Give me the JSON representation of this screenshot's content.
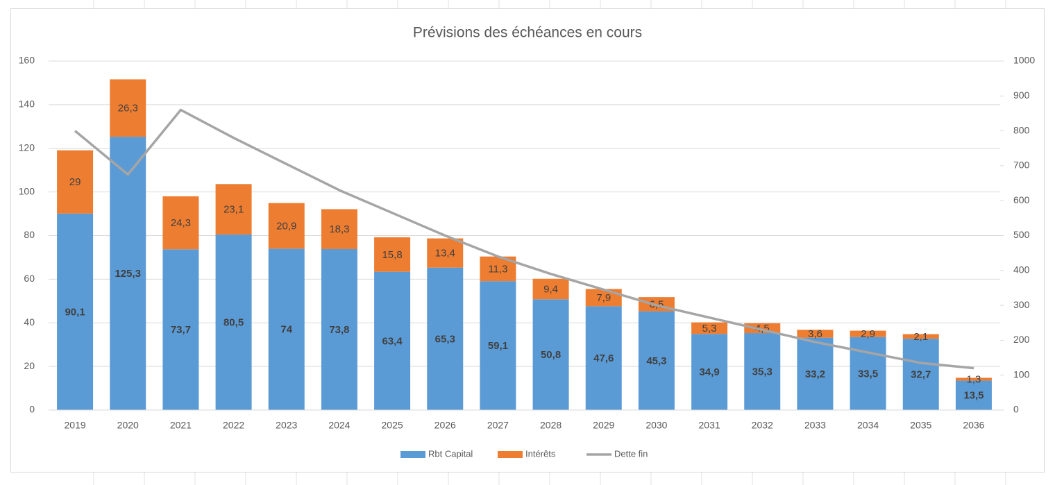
{
  "chart_data": {
    "type": "stacked-bar-line",
    "title": "Prévisions des échéances en cours",
    "categories": [
      "2019",
      "2020",
      "2021",
      "2022",
      "2023",
      "2024",
      "2025",
      "2026",
      "2027",
      "2028",
      "2029",
      "2030",
      "2031",
      "2032",
      "2033",
      "2034",
      "2035",
      "2036"
    ],
    "series": [
      {
        "name": "Rbt Capital",
        "color": "#5b9bd5",
        "type": "bar",
        "values": [
          90.1,
          125.3,
          73.7,
          80.5,
          74,
          73.8,
          63.4,
          65.3,
          59.1,
          50.8,
          47.6,
          45.3,
          34.9,
          35.3,
          33.2,
          33.5,
          32.7,
          13.5
        ],
        "value_labels": [
          "90,1",
          "125,3",
          "73,7",
          "80,5",
          "74",
          "73,8",
          "63,4",
          "65,3",
          "59,1",
          "50,8",
          "47,6",
          "45,3",
          "34,9",
          "35,3",
          "33,2",
          "33,5",
          "32,7",
          "13,5"
        ]
      },
      {
        "name": "Intérêts",
        "color": "#ed7d31",
        "type": "bar",
        "values": [
          29,
          26.3,
          24.3,
          23.1,
          20.9,
          18.3,
          15.8,
          13.4,
          11.3,
          9.4,
          7.9,
          6.5,
          5.3,
          4.5,
          3.6,
          2.9,
          2.1,
          1.3
        ],
        "value_labels": [
          "29",
          "26,3",
          "24,3",
          "23,1",
          "20,9",
          "18,3",
          "15,8",
          "13,4",
          "11,3",
          "9,4",
          "7,9",
          "6,5",
          "5,3",
          "4,5",
          "3,6",
          "2,9",
          "2,1",
          "1,3"
        ]
      },
      {
        "name": "Dette fin",
        "color": "#a5a5a5",
        "type": "line",
        "axis": "y2",
        "values": [
          800,
          675,
          860,
          780,
          705,
          630,
          565,
          500,
          440,
          390,
          345,
          300,
          265,
          230,
          195,
          165,
          135,
          120
        ]
      }
    ],
    "ylim": [
      0,
      160
    ],
    "yticks": [
      0,
      20,
      40,
      60,
      80,
      100,
      120,
      140,
      160
    ],
    "y2lim": [
      0,
      1000
    ],
    "y2ticks": [
      0,
      100,
      200,
      300,
      400,
      500,
      600,
      700,
      800,
      900,
      1000
    ],
    "grid": true,
    "legend": "bottom"
  }
}
